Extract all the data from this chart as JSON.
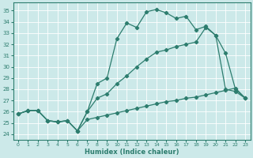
{
  "xlabel": "Humidex (Indice chaleur)",
  "bg_color": "#cce9e9",
  "line_color": "#2d7d6e",
  "xlim": [
    -0.5,
    23.5
  ],
  "ylim": [
    23.5,
    35.7
  ],
  "xticks": [
    0,
    1,
    2,
    3,
    4,
    5,
    6,
    7,
    8,
    9,
    10,
    11,
    12,
    13,
    14,
    15,
    16,
    17,
    18,
    19,
    20,
    21,
    22,
    23
  ],
  "yticks": [
    24,
    25,
    26,
    27,
    28,
    29,
    30,
    31,
    32,
    33,
    34,
    35
  ],
  "line1_x": [
    0,
    1,
    2,
    3,
    4,
    5,
    6,
    7,
    8,
    9,
    10,
    11,
    12,
    13,
    14,
    15,
    16,
    17,
    18,
    19,
    20,
    21,
    22,
    23
  ],
  "line1_y": [
    25.8,
    26.1,
    26.1,
    25.2,
    25.1,
    25.2,
    24.3,
    26.0,
    28.5,
    29.0,
    32.5,
    33.9,
    33.5,
    34.9,
    35.1,
    34.8,
    34.3,
    34.5,
    33.3,
    33.6,
    32.8,
    31.2,
    28.0,
    27.2
  ],
  "line2_x": [
    0,
    1,
    2,
    3,
    4,
    5,
    6,
    7,
    8,
    9,
    10,
    11,
    12,
    13,
    14,
    15,
    16,
    17,
    18,
    19,
    20,
    21,
    22,
    23
  ],
  "line2_y": [
    25.8,
    26.1,
    26.1,
    25.2,
    25.1,
    25.2,
    24.3,
    26.0,
    27.2,
    27.6,
    28.5,
    29.2,
    30.0,
    30.7,
    31.3,
    31.5,
    31.8,
    32.0,
    32.2,
    33.5,
    32.8,
    28.0,
    27.8,
    27.2
  ],
  "line3_x": [
    0,
    1,
    2,
    3,
    4,
    5,
    6,
    7,
    8,
    9,
    10,
    11,
    12,
    13,
    14,
    15,
    16,
    17,
    18,
    19,
    20,
    21,
    22,
    23
  ],
  "line3_y": [
    25.8,
    26.1,
    26.1,
    25.2,
    25.1,
    25.2,
    24.3,
    25.3,
    25.5,
    25.7,
    25.9,
    26.1,
    26.3,
    26.5,
    26.7,
    26.9,
    27.0,
    27.2,
    27.3,
    27.5,
    27.7,
    27.9,
    28.1,
    27.2
  ]
}
